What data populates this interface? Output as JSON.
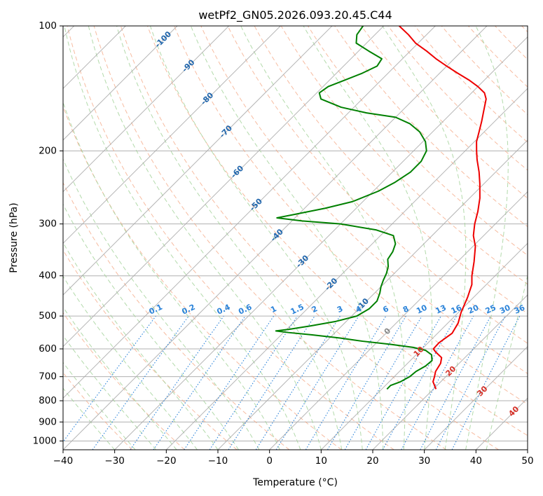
{
  "chart_data": {
    "type": "line",
    "title": "wetPf2_GN05.2026.093.20.45.C44",
    "xlabel": "Temperature (°C)",
    "ylabel": "Pressure (hPa)",
    "xlim": [
      -40,
      50
    ],
    "ylim": [
      1050,
      100
    ],
    "y_scale": "log",
    "grid": true,
    "x_ticks": [
      -40,
      -30,
      -20,
      -10,
      0,
      10,
      20,
      30,
      40,
      50
    ],
    "y_ticks": [
      100,
      200,
      300,
      400,
      500,
      600,
      700,
      800,
      900,
      1000
    ],
    "colors": {
      "temperature": "#ee0000",
      "dewpoint": "#008000",
      "isotherm": "#aaaaaa",
      "dry_adiabat": "#f4a582",
      "moist_adiabat": "#a6d39c",
      "mixing_ratio": "#2b83d9",
      "isotherm_label": "#2166ac",
      "positive_label": "#d73027",
      "zero_label": "#888888"
    },
    "series": [
      {
        "key": "temperature",
        "points": [
          [
            750,
            20.5
          ],
          [
            720,
            18.5
          ],
          [
            700,
            17.8
          ],
          [
            680,
            17.0
          ],
          [
            650,
            16.4
          ],
          [
            630,
            15.5
          ],
          [
            610,
            13.2
          ],
          [
            600,
            12.2
          ],
          [
            580,
            12.1
          ],
          [
            550,
            12.8
          ],
          [
            520,
            12.0
          ],
          [
            490,
            10.5
          ],
          [
            450,
            8.8
          ],
          [
            420,
            7.2
          ],
          [
            400,
            5.5
          ],
          [
            370,
            3.2
          ],
          [
            340,
            0.5
          ],
          [
            320,
            -2.0
          ],
          [
            300,
            -4.0
          ],
          [
            280,
            -5.8
          ],
          [
            260,
            -8.0
          ],
          [
            240,
            -10.8
          ],
          [
            225,
            -13.2
          ],
          [
            210,
            -16.0
          ],
          [
            200,
            -17.8
          ],
          [
            190,
            -19.6
          ],
          [
            180,
            -21.0
          ],
          [
            170,
            -22.5
          ],
          [
            160,
            -24.2
          ],
          [
            150,
            -26.0
          ],
          [
            145,
            -27.5
          ],
          [
            140,
            -30.0
          ],
          [
            135,
            -33.0
          ],
          [
            130,
            -36.5
          ],
          [
            125,
            -40.0
          ],
          [
            120,
            -43.5
          ],
          [
            115,
            -46.8
          ],
          [
            110,
            -50.5
          ],
          [
            105,
            -53.5
          ],
          [
            100,
            -57.0
          ]
        ]
      },
      {
        "key": "dewpoint",
        "points": [
          [
            750,
            11.0
          ],
          [
            735,
            11.0
          ],
          [
            720,
            12.2
          ],
          [
            700,
            13.0
          ],
          [
            680,
            13.2
          ],
          [
            660,
            14.0
          ],
          [
            640,
            14.2
          ],
          [
            620,
            13.0
          ],
          [
            605,
            11.0
          ],
          [
            595,
            8.0
          ],
          [
            585,
            3.0
          ],
          [
            575,
            -3.0
          ],
          [
            565,
            -8.0
          ],
          [
            555,
            -14.0
          ],
          [
            548,
            -19.0
          ],
          [
            543,
            -21.8
          ],
          [
            538,
            -19.5
          ],
          [
            528,
            -16.0
          ],
          [
            515,
            -12.0
          ],
          [
            500,
            -9.0
          ],
          [
            480,
            -8.0
          ],
          [
            460,
            -8.0
          ],
          [
            440,
            -9.0
          ],
          [
            425,
            -10.0
          ],
          [
            410,
            -10.8
          ],
          [
            395,
            -11.5
          ],
          [
            380,
            -12.5
          ],
          [
            365,
            -14.0
          ],
          [
            350,
            -14.5
          ],
          [
            335,
            -15.5
          ],
          [
            320,
            -17.5
          ],
          [
            310,
            -22.0
          ],
          [
            300,
            -30.0
          ],
          [
            295,
            -38.0
          ],
          [
            290,
            -43.5
          ],
          [
            285,
            -41.0
          ],
          [
            275,
            -36.0
          ],
          [
            265,
            -32.0
          ],
          [
            250,
            -29.0
          ],
          [
            238,
            -27.5
          ],
          [
            225,
            -26.5
          ],
          [
            212,
            -26.5
          ],
          [
            200,
            -27.5
          ],
          [
            190,
            -29.5
          ],
          [
            180,
            -32.5
          ],
          [
            172,
            -36.0
          ],
          [
            166,
            -40.0
          ],
          [
            162,
            -46.5
          ],
          [
            157,
            -52.5
          ],
          [
            150,
            -58.0
          ],
          [
            145,
            -59.5
          ],
          [
            140,
            -59.0
          ],
          [
            135,
            -57.0
          ],
          [
            130,
            -55.0
          ],
          [
            125,
            -53.5
          ],
          [
            120,
            -54.0
          ],
          [
            115,
            -58.0
          ],
          [
            110,
            -62.0
          ],
          [
            105,
            -63.5
          ],
          [
            100,
            -64.0
          ]
        ]
      }
    ],
    "isotherm_labels": [
      "-100",
      "-90",
      "-80",
      "-70",
      "-60",
      "-50",
      "-40",
      "-30",
      "-20",
      "-10",
      "0",
      "10",
      "20",
      "30",
      "40"
    ],
    "mixing_ratio_labels": [
      "0.1",
      "0.2",
      "0.4",
      "0.6",
      "1",
      "1.5",
      "2",
      "3",
      "4",
      "6",
      "8",
      "10",
      "13",
      "16",
      "20",
      "25",
      "30",
      "36"
    ]
  }
}
